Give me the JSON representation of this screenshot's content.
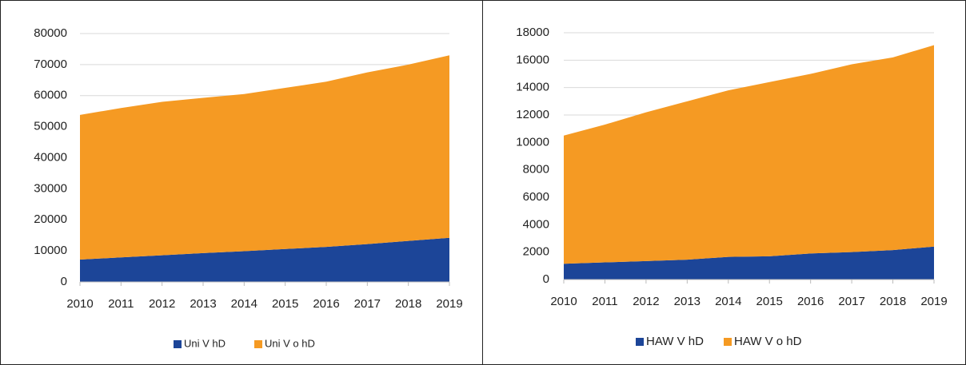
{
  "chart_data": [
    {
      "type": "area",
      "stacked": true,
      "grid": true,
      "categories": [
        "2010",
        "2011",
        "2012",
        "2013",
        "2014",
        "2015",
        "2016",
        "2017",
        "2018",
        "2019"
      ],
      "ylim": [
        0,
        80000
      ],
      "yticks": [
        0,
        10000,
        20000,
        30000,
        40000,
        50000,
        60000,
        70000,
        80000
      ],
      "legend": "bottom",
      "series": [
        {
          "name": "Uni V hD",
          "color": "#1c4598",
          "values": [
            7200,
            7900,
            8600,
            9300,
            9900,
            10600,
            11300,
            12200,
            13200,
            14200
          ]
        },
        {
          "name": "Uni V o hD",
          "color": "#f59a23",
          "values": [
            46600,
            48100,
            49400,
            50000,
            50600,
            51900,
            53200,
            55300,
            56800,
            58800
          ]
        }
      ]
    },
    {
      "type": "area",
      "stacked": true,
      "grid": true,
      "categories": [
        "2010",
        "2011",
        "2012",
        "2013",
        "2014",
        "2015",
        "2016",
        "2017",
        "2018",
        "2019"
      ],
      "ylim": [
        0,
        18000
      ],
      "yticks": [
        0,
        2000,
        4000,
        6000,
        8000,
        10000,
        12000,
        14000,
        16000,
        18000
      ],
      "legend": "bottom",
      "series": [
        {
          "name": "HAW V hD",
          "color": "#1c4598",
          "values": [
            1150,
            1250,
            1350,
            1450,
            1650,
            1700,
            1900,
            2000,
            2150,
            2400
          ]
        },
        {
          "name": "HAW V o hD",
          "color": "#f59a23",
          "values": [
            9350,
            10050,
            10850,
            11550,
            12150,
            12700,
            13100,
            13700,
            14050,
            14700
          ]
        }
      ]
    }
  ]
}
